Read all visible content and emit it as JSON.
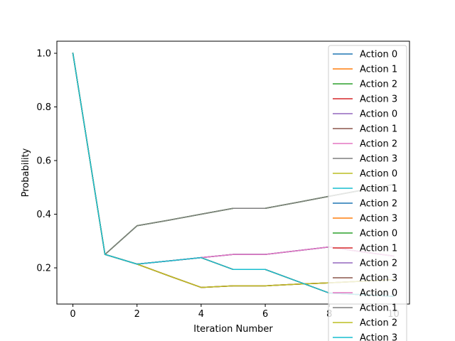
{
  "chart_data": {
    "type": "line",
    "title": "",
    "xlabel": "Iteration Number",
    "ylabel": "Probability",
    "xlim": [
      -0.5,
      10.5
    ],
    "ylim": [
      0.065,
      1.045
    ],
    "xticks": [
      0,
      2,
      4,
      6,
      8,
      10
    ],
    "yticks": [
      0.2,
      0.4,
      0.6,
      0.8,
      1.0
    ],
    "xtick_labels": [
      "0",
      "2",
      "4",
      "6",
      "8",
      "10"
    ],
    "ytick_labels": [
      "0.2",
      "0.4",
      "0.6",
      "0.8",
      "1.0"
    ],
    "grid": false,
    "legend_position": "upper-right",
    "x": [
      0,
      1,
      2,
      3,
      4,
      5,
      6,
      7,
      8,
      9,
      10
    ],
    "series": [
      {
        "name": "Action 0",
        "color": "#1f77b4",
        "values": [
          1.0,
          0.25,
          0.357,
          0.378,
          0.4,
          0.422,
          0.422,
          0.444,
          0.467,
          0.489,
          0.511
        ]
      },
      {
        "name": "Action 1",
        "color": "#ff7f0e",
        "values": [
          1.0,
          0.25,
          0.214,
          0.17,
          0.127,
          0.133,
          0.133,
          0.139,
          0.144,
          0.15,
          0.156
        ]
      },
      {
        "name": "Action 2",
        "color": "#2ca02c",
        "values": [
          1.0,
          0.25,
          0.214,
          0.226,
          0.238,
          0.25,
          0.25,
          0.264,
          0.278,
          0.26,
          0.244
        ]
      },
      {
        "name": "Action 3",
        "color": "#d62728",
        "values": [
          1.0,
          0.25,
          0.214,
          0.226,
          0.238,
          0.194,
          0.194,
          0.15,
          0.106,
          0.1,
          0.094
        ]
      },
      {
        "name": "Action 0",
        "color": "#9467bd",
        "values": [
          1.0,
          0.25,
          0.357,
          0.378,
          0.4,
          0.422,
          0.422,
          0.444,
          0.467,
          0.489,
          0.511
        ]
      },
      {
        "name": "Action 1",
        "color": "#8c564b",
        "values": [
          1.0,
          0.25,
          0.214,
          0.17,
          0.127,
          0.133,
          0.133,
          0.139,
          0.144,
          0.15,
          0.156
        ]
      },
      {
        "name": "Action 2",
        "color": "#e377c2",
        "values": [
          1.0,
          0.25,
          0.214,
          0.226,
          0.238,
          0.25,
          0.25,
          0.264,
          0.278,
          0.26,
          0.244
        ]
      },
      {
        "name": "Action 3",
        "color": "#7f7f7f",
        "values": [
          1.0,
          0.25,
          0.214,
          0.226,
          0.238,
          0.194,
          0.194,
          0.15,
          0.106,
          0.1,
          0.094
        ]
      },
      {
        "name": "Action 0",
        "color": "#bcbd22",
        "values": [
          1.0,
          0.25,
          0.357,
          0.378,
          0.4,
          0.422,
          0.422,
          0.444,
          0.467,
          0.489,
          0.511
        ]
      },
      {
        "name": "Action 1",
        "color": "#17becf",
        "values": [
          1.0,
          0.25,
          0.214,
          0.17,
          0.127,
          0.133,
          0.133,
          0.139,
          0.144,
          0.15,
          0.156
        ]
      },
      {
        "name": "Action 2",
        "color": "#1f77b4",
        "values": [
          1.0,
          0.25,
          0.214,
          0.226,
          0.238,
          0.25,
          0.25,
          0.264,
          0.278,
          0.26,
          0.244
        ]
      },
      {
        "name": "Action 3",
        "color": "#ff7f0e",
        "values": [
          1.0,
          0.25,
          0.214,
          0.226,
          0.238,
          0.194,
          0.194,
          0.15,
          0.106,
          0.1,
          0.094
        ]
      },
      {
        "name": "Action 0",
        "color": "#2ca02c",
        "values": [
          1.0,
          0.25,
          0.357,
          0.378,
          0.4,
          0.422,
          0.422,
          0.444,
          0.467,
          0.489,
          0.511
        ]
      },
      {
        "name": "Action 1",
        "color": "#d62728",
        "values": [
          1.0,
          0.25,
          0.214,
          0.17,
          0.127,
          0.133,
          0.133,
          0.139,
          0.144,
          0.15,
          0.156
        ]
      },
      {
        "name": "Action 2",
        "color": "#9467bd",
        "values": [
          1.0,
          0.25,
          0.214,
          0.226,
          0.238,
          0.25,
          0.25,
          0.264,
          0.278,
          0.26,
          0.244
        ]
      },
      {
        "name": "Action 3",
        "color": "#8c564b",
        "values": [
          1.0,
          0.25,
          0.214,
          0.226,
          0.238,
          0.194,
          0.194,
          0.15,
          0.106,
          0.1,
          0.094
        ]
      },
      {
        "name": "Action 0",
        "color": "#e377c2",
        "values": [
          1.0,
          0.25,
          0.214,
          0.226,
          0.238,
          0.25,
          0.25,
          0.264,
          0.278,
          0.26,
          0.244
        ]
      },
      {
        "name": "Action 1",
        "color": "#7f7f7f",
        "values": [
          1.0,
          0.25,
          0.357,
          0.378,
          0.4,
          0.422,
          0.422,
          0.444,
          0.467,
          0.489,
          0.511
        ]
      },
      {
        "name": "Action 2",
        "color": "#bcbd22",
        "values": [
          1.0,
          0.25,
          0.214,
          0.17,
          0.127,
          0.133,
          0.133,
          0.139,
          0.144,
          0.15,
          0.156
        ]
      },
      {
        "name": "Action 3",
        "color": "#17becf",
        "values": [
          1.0,
          0.25,
          0.214,
          0.226,
          0.238,
          0.194,
          0.194,
          0.15,
          0.106,
          0.1,
          0.094
        ]
      }
    ]
  }
}
